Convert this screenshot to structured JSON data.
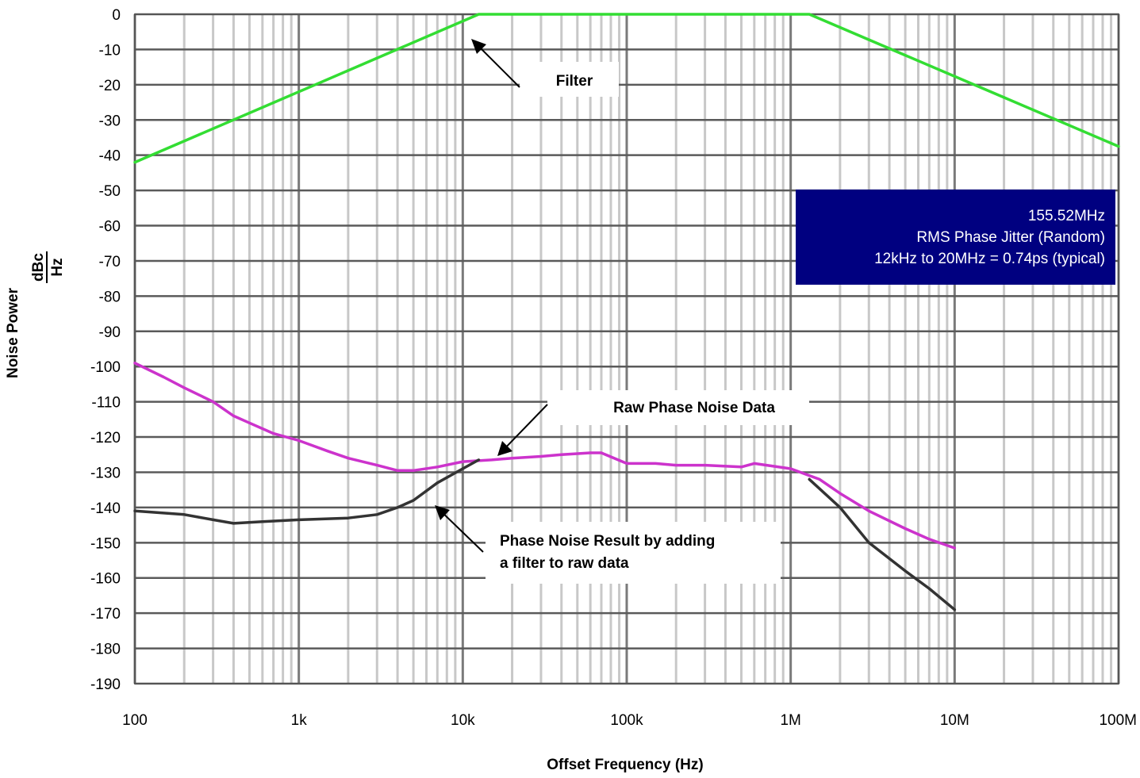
{
  "chart_data": {
    "type": "line",
    "title": "",
    "xlabel": "Offset Frequency (Hz)",
    "ylabel_main": "Noise Power",
    "ylabel_unit_num": "dBc",
    "ylabel_unit_den": "Hz",
    "x_scale": "log",
    "xlim": [
      100,
      100000000
    ],
    "ylim": [
      -190,
      0
    ],
    "grid": true,
    "x_ticks": [
      {
        "value": 100,
        "label": "100"
      },
      {
        "value": 1000,
        "label": "1k"
      },
      {
        "value": 10000,
        "label": "10k"
      },
      {
        "value": 100000,
        "label": "100k"
      },
      {
        "value": 1000000,
        "label": "1M"
      },
      {
        "value": 10000000,
        "label": "10M"
      },
      {
        "value": 100000000,
        "label": "100M"
      }
    ],
    "y_ticks": [
      0,
      -10,
      -20,
      -30,
      -40,
      -50,
      -60,
      -70,
      -80,
      -90,
      -100,
      -110,
      -120,
      -130,
      -140,
      -150,
      -160,
      -170,
      -180,
      -190
    ],
    "series": [
      {
        "color": "#33dd33",
        "x": [
          100,
          1000,
          12500,
          1300000,
          100000000
        ],
        "y": [
          -42,
          -22,
          0,
          0,
          -37.5
        ]
      },
      {
        "color": "#cc33cc",
        "x": [
          100,
          150,
          200,
          300,
          400,
          500,
          700,
          1000,
          1500,
          2000,
          3000,
          4000,
          5000,
          7000,
          10000,
          15000,
          20000,
          30000,
          40000,
          60000,
          70000,
          100000,
          150000,
          200000,
          300000,
          500000,
          600000,
          1000000,
          1500000,
          2000000,
          3000000,
          5000000,
          7000000,
          10000000
        ],
        "y": [
          -99,
          -103,
          -106,
          -110,
          -114,
          -116,
          -119,
          -121,
          -124,
          -126,
          -128,
          -129.5,
          -129.5,
          -128.5,
          -127,
          -126.5,
          -126,
          -125.5,
          -125,
          -124.5,
          -124.5,
          -127.5,
          -127.5,
          -128,
          -128,
          -128.5,
          -127.5,
          -129,
          -132,
          -136,
          -141,
          -146,
          -149,
          -151.5
        ]
      },
      {
        "color": "#333333",
        "x": [
          100,
          200,
          300,
          400,
          600,
          1000,
          2000,
          3000,
          4000,
          5000,
          7000,
          10000,
          12500
        ],
        "y": [
          -141,
          -142,
          -143.5,
          -144.5,
          -144,
          -143.5,
          -143,
          -142,
          -140,
          -138,
          -133,
          -129,
          -126.5
        ]
      },
      {
        "color": "#333333",
        "x": [
          1300000,
          2000000,
          3000000,
          5000000,
          7000000,
          10000000
        ],
        "y": [
          -132,
          -140,
          -150,
          -158,
          -163,
          -169
        ]
      }
    ],
    "annotations": {
      "filter": {
        "label": "Filter",
        "target_x": 12500,
        "target_y": -1
      },
      "raw": {
        "label": "Raw Phase Noise Data",
        "target_x": 12000,
        "target_y": -126
      },
      "result": {
        "line1": "Phase Noise Result by adding",
        "line2": "a filter to raw data",
        "target_x": 6500,
        "target_y": -139
      }
    },
    "info_box": {
      "line1": "155.52MHz",
      "line2": "RMS Phase Jitter (Random)",
      "line3": "12kHz to 20MHz = 0.74ps (typical)",
      "background": "#000080"
    }
  }
}
